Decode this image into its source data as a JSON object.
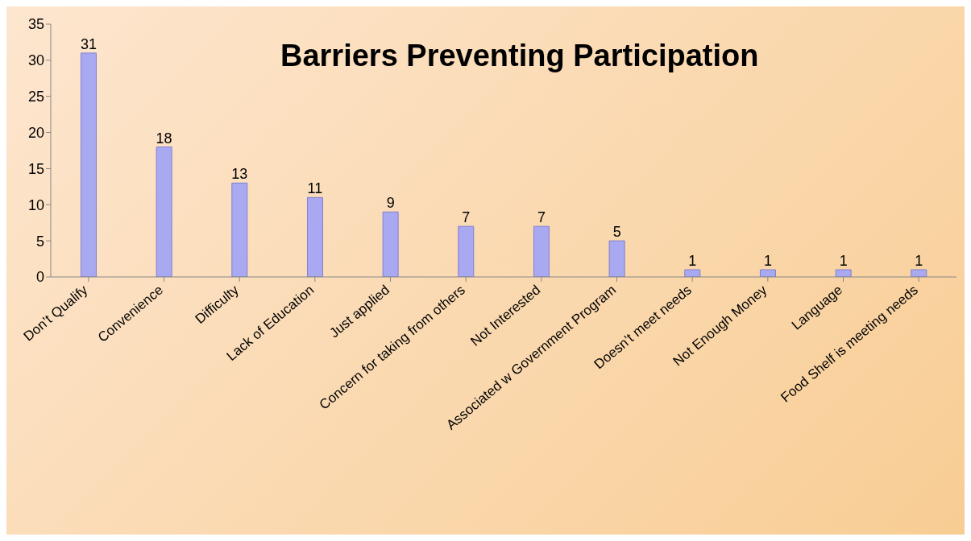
{
  "chart_data": {
    "type": "bar",
    "title": "Barriers Preventing Participation",
    "categories": [
      "Don’t Qualify",
      "Convenience",
      "Difficulty",
      "Lack of Education",
      "Just applied",
      "Concern for taking from others",
      "Not Interested",
      "Associated w Government Program",
      "Doesn’t meet needs",
      "Not Enough Money",
      "Language",
      "Food Shelf is meeting needs"
    ],
    "values": [
      31,
      18,
      13,
      11,
      9,
      7,
      7,
      5,
      1,
      1,
      1,
      1
    ],
    "color": "#a9a9f2",
    "ylim": [
      0,
      35
    ],
    "yticks": [
      0,
      5,
      10,
      15,
      20,
      25,
      30,
      35
    ],
    "grid": false,
    "legend": false,
    "data_labels": true
  }
}
